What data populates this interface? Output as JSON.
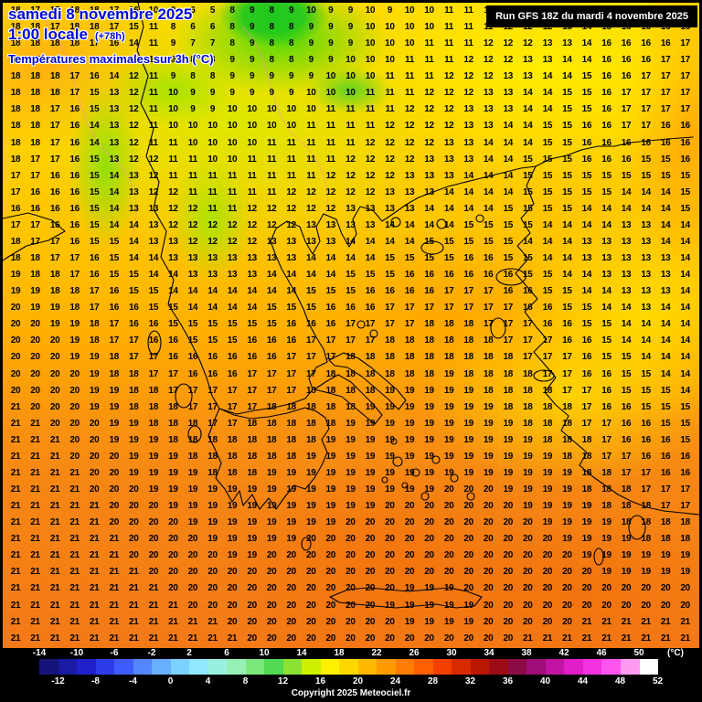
{
  "header": {
    "date_line": "samedi 8 novembre 2025",
    "time_line": "1:00 locale",
    "offset": "(+78h)",
    "subtitle": "Températures maximales sur 3h (°C)",
    "run_label": "Run GFS 18Z du mardi 4 novembre 2025",
    "title_color": "#0008d0"
  },
  "map": {
    "rows": [
      "18 17 17 18 18 17 16 10 9 6 5 8 9 8 9 10 9 9 10 9 10 10 11 11 11 11 12 12 12 13 15 16 16 16 16",
      "18 18 17 18 18 17 15 11 8 6 6 8 9 8 8 9 9 9 10 10 10 10 11 11 11 12 12 12 13 14 15 16 16 16 16",
      "18 18 18 18 17 16 14 11 9 7 7 8 9 8 8 9 9 9 10 10 10 11 11 11 12 12 12 13 13 14 16 16 16 16 17",
      "17 17 18 18 17 15 13 11 9 8 8 9 9 8 8 9 9 10 10 10 11 11 11 12 12 12 13 13 14 14 16 16 16 17 17",
      "18 18 18 17 16 14 12 11 9 8 8 9 9 9 9 9 10 10 10 11 11 11 12 12 12 13 13 14 14 15 16 16 17 17 17",
      "18 18 18 17 15 13 12 11 10 9 9 9 9 9 9 10 10 10 11 11 11 12 12 12 13 13 14 14 15 15 16 17 17 17 17",
      "18 18 17 16 15 13 12 11 10 9 9 10 10 10 10 10 11 11 11 11 12 12 12 13 13 13 14 14 15 15 16 17 17 17 17",
      "18 18 17 16 14 13 12 11 10 10 10 10 10 10 10 11 11 11 11 12 12 12 12 13 13 14 14 15 15 16 16 17 17 16 16",
      "18 18 17 16 14 13 12 11 11 10 10 10 10 11 11 11 11 11 12 12 12 12 13 13 14 14 14 15 15 16 16 16 16 16 16",
      "18 17 17 16 15 13 12 12 11 11 10 10 11 11 11 11 11 12 12 12 12 13 13 13 14 14 15 15 15 16 16 16 15 15 16",
      "17 17 16 16 15 14 13 12 11 11 11 11 11 11 11 11 12 12 12 12 13 13 13 14 14 14 15 15 15 15 15 15 15 15 15",
      "17 16 16 16 15 14 13 12 12 11 11 11 11 11 12 12 12 12 12 13 13 13 14 14 14 14 15 15 15 15 15 14 14 14 15",
      "16 16 16 16 15 14 13 13 12 12 11 11 12 12 12 12 12 13 13 13 13 14 14 14 14 15 15 15 15 14 14 14 14 14 15",
      "17 17 16 16 15 14 14 13 12 12 12 12 12 12 12 13 13 13 13 14 14 14 14 15 15 15 15 14 14 14 14 13 13 14 14",
      "18 17 17 16 15 15 14 13 13 12 12 12 12 13 13 13 13 14 14 14 14 15 15 15 15 15 14 14 14 13 13 13 13 14 14",
      "18 18 17 17 16 15 14 14 13 13 13 13 13 13 13 14 14 14 14 15 15 15 15 16 16 15 15 14 14 13 13 13 13 13 14",
      "19 18 18 17 16 15 15 14 14 13 13 13 13 14 14 14 14 15 15 15 16 16 16 16 16 16 15 15 14 14 13 13 13 13 14",
      "19 19 18 18 17 16 15 15 14 14 14 14 14 14 14 15 15 15 16 16 16 16 17 17 17 16 16 15 15 14 14 13 13 13 14",
      "20 19 19 18 17 16 16 15 15 14 14 14 14 15 15 15 16 16 16 17 17 17 17 17 17 17 16 16 15 15 14 14 13 14 14",
      "20 20 19 19 18 17 16 16 15 15 15 15 15 15 16 16 16 17 17 17 17 18 18 18 17 17 17 16 16 15 15 14 14 14 14",
      "20 20 20 19 18 17 17 16 16 15 15 15 16 16 16 17 17 17 17 18 18 18 18 18 18 17 17 17 16 16 15 14 14 14 14",
      "20 20 20 19 19 18 17 17 16 16 16 16 16 16 17 17 17 18 18 18 18 18 18 18 18 18 17 17 17 16 15 15 14 14 14",
      "20 20 20 20 19 18 18 17 17 16 16 16 17 17 17 17 18 18 18 18 18 18 19 18 18 18 18 17 17 16 16 15 15 14 14",
      "20 20 20 20 19 19 18 18 17 17 17 17 17 17 17 18 18 18 18 19 19 19 19 19 18 18 18 18 17 17 16 15 15 15 14",
      "21 20 20 20 19 19 18 18 18 17 17 17 17 18 18 18 18 18 19 19 19 19 19 19 19 18 18 18 18 17 16 16 15 15 15",
      "21 21 20 20 20 19 19 18 18 18 17 17 18 18 18 18 18 19 19 19 19 19 19 19 19 19 18 18 18 17 17 16 16 15 15",
      "21 21 21 20 20 19 19 19 18 18 18 18 18 18 18 18 19 19 19 19 19 19 19 19 19 19 19 18 18 18 17 16 16 16 15",
      "21 21 21 20 20 20 19 19 19 18 18 18 18 18 18 19 19 19 19 19 19 19 19 19 19 19 19 19 18 18 17 17 16 16 16",
      "21 21 21 21 20 20 19 19 19 19 18 18 18 19 19 19 19 19 19 19 19 19 19 19 19 19 19 19 19 18 18 17 17 16 16",
      "21 21 21 21 20 20 20 19 19 19 19 19 19 19 19 19 19 19 19 19 19 19 20 20 20 19 19 19 19 18 18 18 17 17 17",
      "21 21 21 21 21 20 20 20 19 19 19 19 19 19 19 19 19 19 19 20 20 20 20 20 20 20 19 19 19 19 18 18 18 17 17",
      "21 21 21 21 21 20 20 20 20 19 19 19 19 19 19 19 19 20 20 20 20 20 20 20 20 20 20 19 19 19 19 18 18 18 18",
      "21 21 21 21 21 21 20 20 20 20 19 19 19 19 19 20 20 20 20 20 20 20 20 20 20 20 20 20 19 19 19 19 18 18 18",
      "21 21 21 21 21 21 20 20 20 20 20 19 19 20 20 20 20 20 20 20 20 20 20 20 20 20 20 20 20 19 19 19 19 19 19",
      "21 21 21 21 21 21 21 20 20 20 20 20 20 20 20 20 20 20 20 20 20 20 20 20 20 20 20 20 20 20 19 19 19 19 19",
      "21 21 21 21 21 21 21 21 20 20 20 20 20 20 20 20 20 20 20 20 19 19 19 20 20 20 20 20 20 20 20 20 20 20 20",
      "21 21 21 21 21 21 21 21 21 20 20 20 20 20 20 20 20 20 20 19 19 19 19 19 20 20 20 20 20 20 20 20 20 20 20",
      "21 21 21 21 21 21 21 21 21 21 21 20 20 20 20 20 20 20 20 20 19 19 19 19 20 20 20 20 20 21 21 21 21 21 21",
      "21 21 21 21 21 21 21 21 21 21 21 21 20 20 20 20 20 20 20 20 20 20 20 20 20 20 21 21 21 21 21 21 21 21 21"
    ]
  },
  "scale": {
    "unit": "(°C)",
    "top_labels": [
      -14,
      -10,
      -6,
      -2,
      2,
      6,
      10,
      14,
      18,
      22,
      26,
      30,
      34,
      38,
      42,
      46,
      50
    ],
    "bottom_labels": [
      -12,
      -8,
      -4,
      0,
      4,
      8,
      12,
      16,
      20,
      24,
      28,
      32,
      36,
      40,
      44,
      48,
      52
    ],
    "colors": [
      "#14147a",
      "#1a1aa2",
      "#2121cc",
      "#2d3ce8",
      "#3f5cff",
      "#5486ff",
      "#68b0ff",
      "#7cd2ff",
      "#90e8ff",
      "#98f0e0",
      "#96f0b4",
      "#7ce87c",
      "#52d852",
      "#8ce232",
      "#cff000",
      "#fff000",
      "#ffd800",
      "#ffb900",
      "#ff9b00",
      "#ff7d00",
      "#ff5f00",
      "#f44000",
      "#d82a00",
      "#ba1600",
      "#9c0c14",
      "#8c0a46",
      "#a00c78",
      "#c214a2",
      "#e11ec8",
      "#f332e0",
      "#ff55ee",
      "#ff9af2",
      "#ffffff"
    ]
  },
  "footer": {
    "copyright": "Copyright 2025 Meteociel.fr"
  }
}
